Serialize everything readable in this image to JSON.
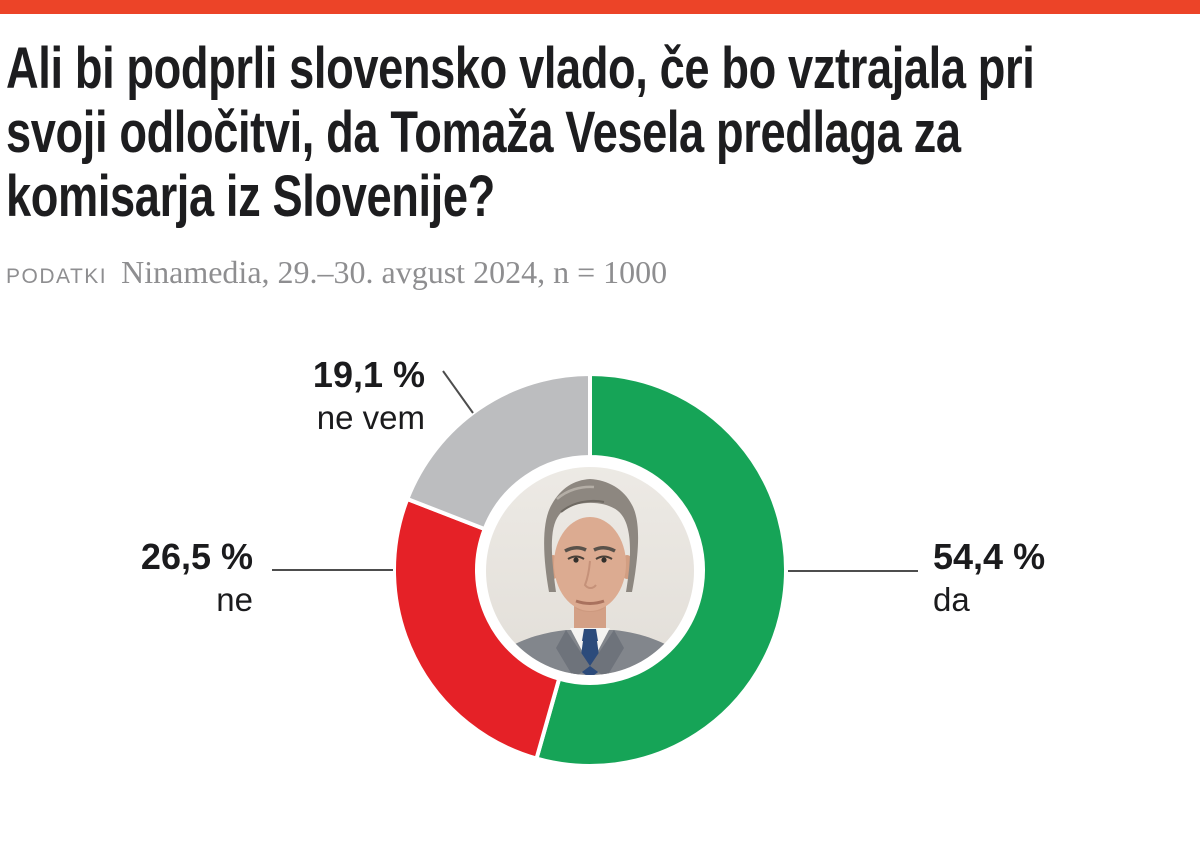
{
  "meta": {
    "top_bar_color": "#ec4428",
    "background_color": "#ffffff",
    "leader_line_color": "#4d4d4d",
    "text_color": "#1b1b1d",
    "source_text_color": "#8e8e90"
  },
  "header": {
    "title": "Ali bi podprli slovensko vlado, če bo vztrajala pri svoji odločitvi, da Tomaža Vesela predlaga za komisarja iz Slovenije?",
    "title_lines": [
      "Ali bi podprli slovensko vlado, če bo vztrajala pri",
      "svoji odločitvi, da Tomaža Vesela predlaga za",
      "komisarja iz Slovenije?"
    ],
    "source_label": "PODATKI",
    "source_text": "Ninamedia, 29.–30. avgust 2024, n = 1000"
  },
  "chart_data": {
    "type": "pie",
    "variant": "donut",
    "title": "Ali bi podprli slovensko vlado, če bo vztrajala pri svoji odločitvi, da Tomaža Vesela predlaga za komisarja iz Slovenije?",
    "source": "Ninamedia, 29.–30. avgust 2024, n = 1000",
    "sample_n": 1000,
    "start_angle_deg": 0,
    "direction": "clockwise",
    "labels_position": "outside",
    "center_image_description": "portrait photo of a gray-haired man in a gray suit with blue tie",
    "slices": [
      {
        "label": "da",
        "value": 54.4,
        "display": "54,4 %",
        "color": "#16a457"
      },
      {
        "label": "ne",
        "value": 26.5,
        "display": "26,5 %",
        "color": "#e52127"
      },
      {
        "label": "ne vem",
        "value": 19.1,
        "display": "19,1 %",
        "color": "#bcbdbf"
      }
    ]
  }
}
